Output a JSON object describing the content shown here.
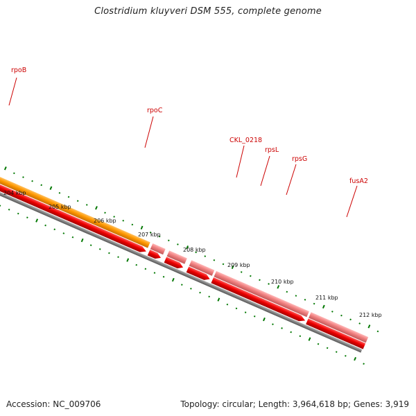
{
  "title": "Clostridium kluyveri DSM 555, complete genome",
  "footer": {
    "accession": "Accession: NC_009706",
    "summary": "Topology: circular; Length: 3,964,618 bp; Genes: 3,919"
  },
  "colors": {
    "orange": "#ff9900",
    "red": "#ee0000",
    "pink": "#f08080",
    "backbone": "#808080",
    "tick": "#007700",
    "label": "#cc0000"
  },
  "kbp_labels": [
    "204 kbp",
    "205 kbp",
    "206 kbp",
    "207 kbp",
    "208 kbp",
    "209 kbp",
    "210 kbp",
    "211 kbp",
    "212 kbp"
  ],
  "gene_labels": [
    "rpoB",
    "rpoC",
    "CKL_0218",
    "rpsL",
    "rpsG",
    "fusA2"
  ]
}
